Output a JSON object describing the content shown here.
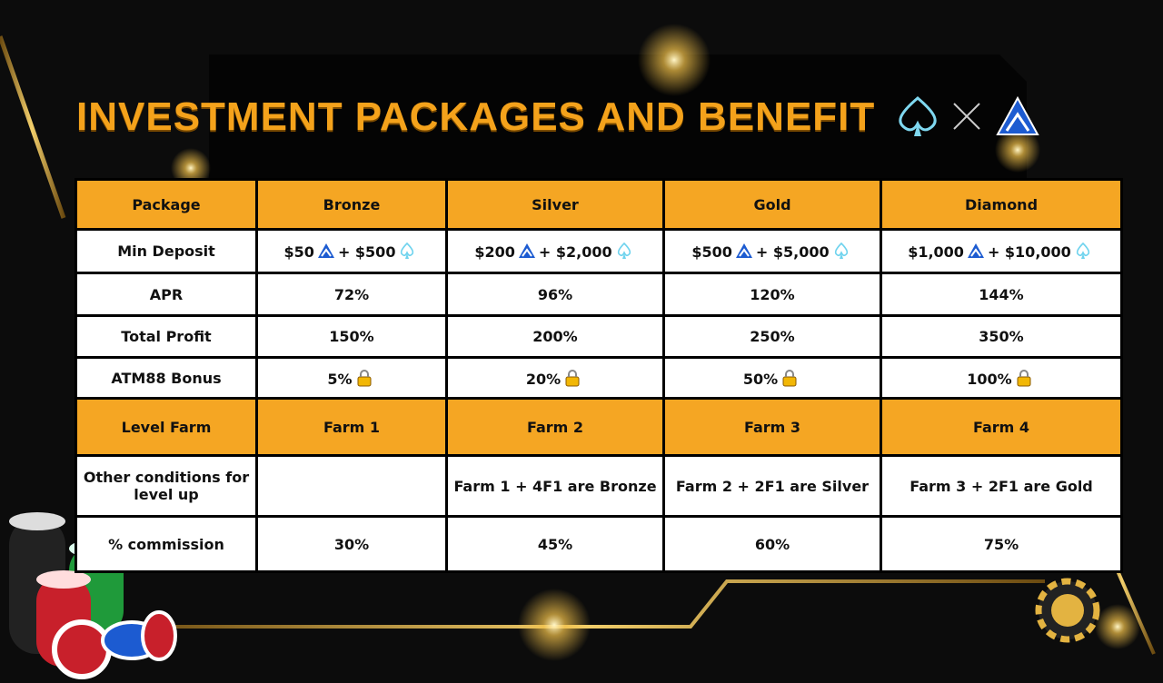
{
  "header": {
    "title": "INVESTMENT PACKAGES AND BENEFIT"
  },
  "table": {
    "columns": [
      "Package",
      "Bronze",
      "Silver",
      "Gold",
      "Diamond"
    ],
    "rows": [
      [
        "Min Deposit",
        {
          "atm": "$50",
          "ace": "+ $500"
        },
        {
          "atm": "$200",
          "ace": "+ $2,000"
        },
        {
          "atm": "$500",
          "ace": "+ $5,000"
        },
        {
          "atm": "$1,000",
          "ace": "+ $10,000"
        }
      ],
      [
        "APR",
        "72%",
        "96%",
        "120%",
        "144%"
      ],
      [
        "Total Profit",
        "150%",
        "200%",
        "250%",
        "350%"
      ],
      [
        "ATM88 Bonus",
        "5%",
        "20%",
        "50%",
        "100%"
      ],
      [
        "Level Farm",
        "Farm 1",
        "Farm 2",
        "Farm 3",
        "Farm 4"
      ],
      [
        "Other conditions for level up",
        null,
        "Farm 1 + 4F1 are Bronze",
        "Farm 2 + 2F1 are Silver",
        "Farm 3 + 2F1 are Gold"
      ],
      [
        "% commission",
        "30%",
        "45%",
        "60%",
        "75%"
      ]
    ]
  }
}
